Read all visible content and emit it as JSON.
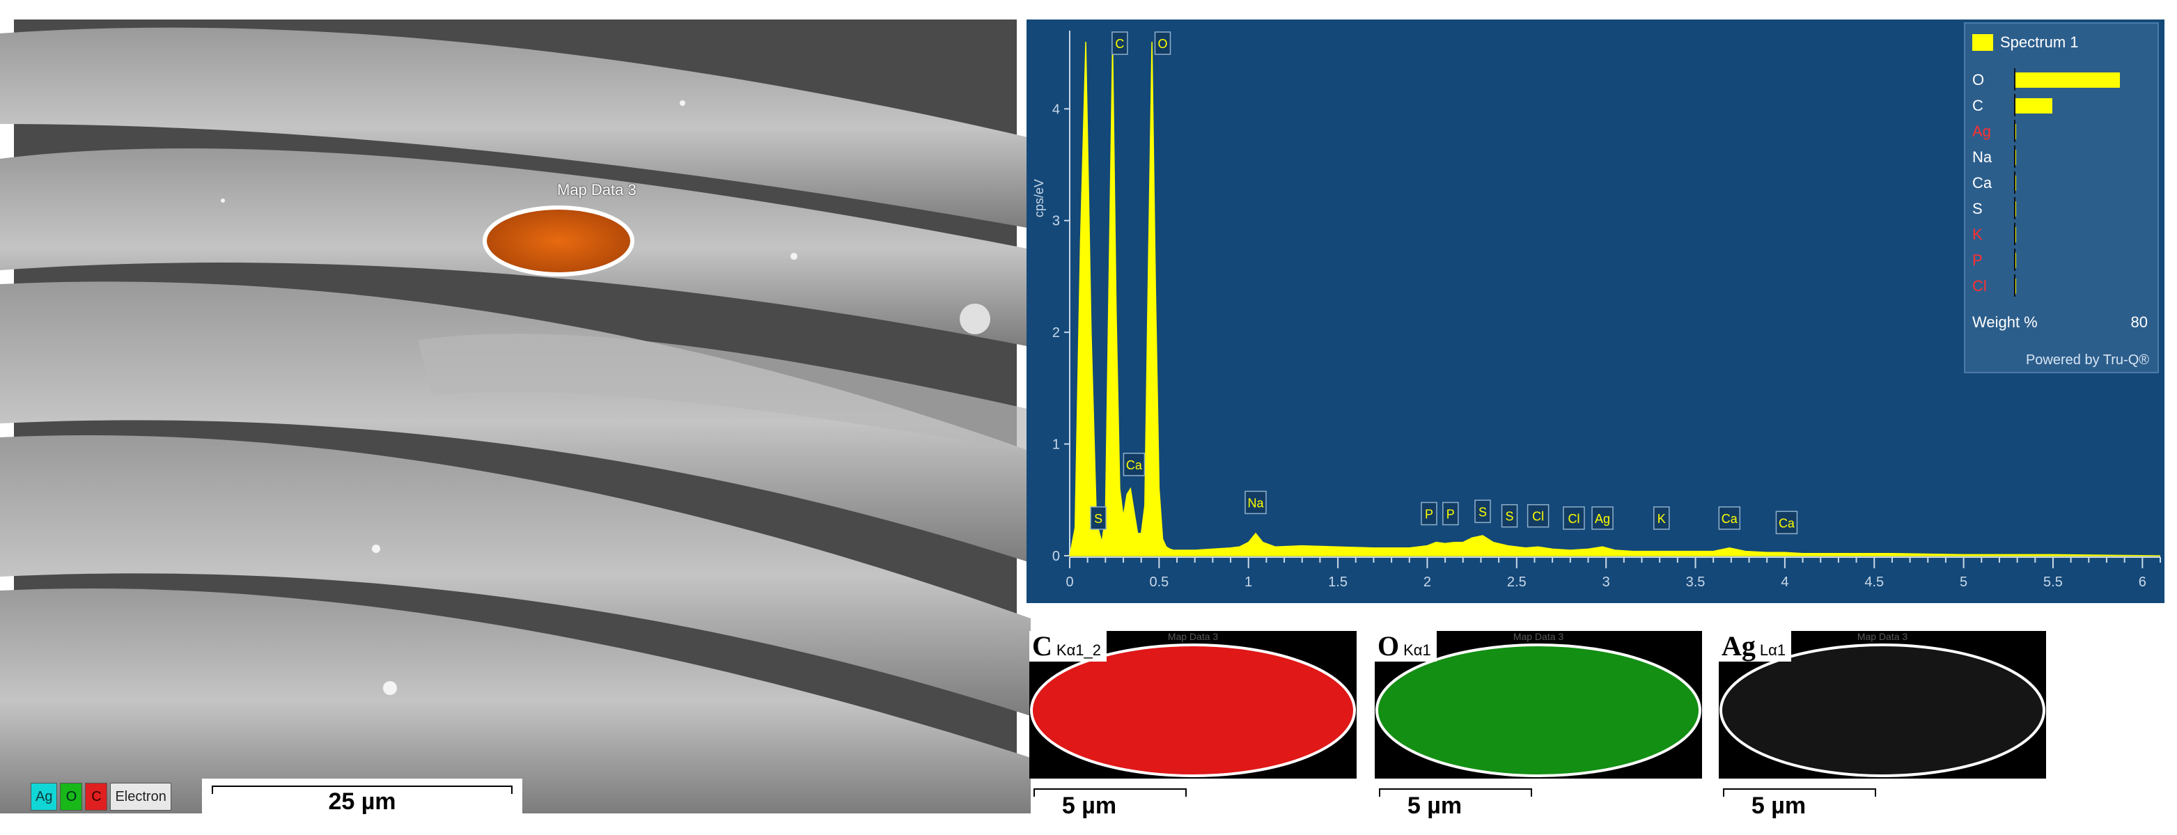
{
  "sem": {
    "roi_label": "Map Data 3",
    "legend": [
      "Ag",
      "O",
      "C",
      "Electron"
    ],
    "scale_bar": "25 µm"
  },
  "chart_data": {
    "type": "area",
    "title": "",
    "xlabel": "",
    "ylabel": "cps/eV",
    "xlim": [
      0,
      6.1
    ],
    "ylim": [
      0,
      4.7
    ],
    "x_ticks": [
      "0",
      "0.5",
      "1",
      "1.5",
      "2",
      "2.5",
      "3",
      "3.5",
      "4",
      "4.5",
      "5",
      "5.5",
      "6"
    ],
    "y_ticks": [
      "0",
      "1",
      "2",
      "3",
      "4"
    ],
    "grid": false,
    "series": [
      {
        "name": "Spectrum 1",
        "color": "#ffff00",
        "x": [
          0.0,
          0.03,
          0.06,
          0.09,
          0.12,
          0.15,
          0.18,
          0.2,
          0.22,
          0.24,
          0.26,
          0.28,
          0.3,
          0.32,
          0.34,
          0.36,
          0.38,
          0.4,
          0.42,
          0.44,
          0.46,
          0.48,
          0.5,
          0.52,
          0.54,
          0.56,
          0.58,
          0.6,
          0.65,
          0.7,
          0.8,
          0.9,
          0.95,
          1.0,
          1.04,
          1.08,
          1.15,
          1.3,
          1.5,
          1.7,
          1.9,
          2.0,
          2.05,
          2.1,
          2.15,
          2.2,
          2.25,
          2.31,
          2.37,
          2.45,
          2.55,
          2.62,
          2.7,
          2.8,
          2.9,
          2.98,
          3.05,
          3.15,
          3.3,
          3.45,
          3.6,
          3.69,
          3.78,
          3.9,
          4.0,
          4.1,
          4.3,
          4.6,
          5.0,
          5.5,
          6.1
        ],
        "y": [
          0.0,
          0.25,
          2.8,
          4.6,
          2.0,
          0.3,
          0.12,
          0.35,
          2.5,
          4.6,
          2.2,
          0.6,
          0.35,
          0.55,
          0.6,
          0.4,
          0.2,
          0.2,
          0.45,
          2.6,
          4.6,
          2.4,
          0.6,
          0.15,
          0.08,
          0.06,
          0.05,
          0.05,
          0.05,
          0.05,
          0.06,
          0.07,
          0.08,
          0.12,
          0.2,
          0.12,
          0.08,
          0.09,
          0.08,
          0.07,
          0.07,
          0.09,
          0.12,
          0.11,
          0.12,
          0.12,
          0.16,
          0.18,
          0.12,
          0.09,
          0.07,
          0.08,
          0.06,
          0.05,
          0.06,
          0.08,
          0.05,
          0.04,
          0.04,
          0.04,
          0.04,
          0.07,
          0.04,
          0.03,
          0.03,
          0.02,
          0.02,
          0.02,
          0.01,
          0.01,
          0.0
        ]
      }
    ],
    "peak_labels": [
      {
        "label": "C",
        "x": 0.28,
        "y": 4.8
      },
      {
        "label": "O",
        "x": 0.52,
        "y": 4.8
      },
      {
        "label": "Ca",
        "x": 0.36,
        "y": 0.68
      },
      {
        "label": "S",
        "x": 0.16,
        "y": 0.2
      },
      {
        "label": "Na",
        "x": 1.04,
        "y": 0.34
      },
      {
        "label": "P",
        "x": 2.01,
        "y": 0.24
      },
      {
        "label": "P",
        "x": 2.13,
        "y": 0.24
      },
      {
        "label": "S",
        "x": 2.31,
        "y": 0.26
      },
      {
        "label": "S",
        "x": 2.46,
        "y": 0.22
      },
      {
        "label": "Cl",
        "x": 2.62,
        "y": 0.22
      },
      {
        "label": "Cl",
        "x": 2.82,
        "y": 0.2
      },
      {
        "label": "Ag",
        "x": 2.98,
        "y": 0.2
      },
      {
        "label": "K",
        "x": 3.31,
        "y": 0.2
      },
      {
        "label": "Ca",
        "x": 3.69,
        "y": 0.2
      },
      {
        "label": "Ca",
        "x": 4.01,
        "y": 0.16
      }
    ],
    "legend_panel": {
      "title": "Spectrum 1",
      "xlabel": "Weight %",
      "max": 80,
      "elements": [
        {
          "name": "O",
          "value": 68,
          "color": "#ffffff"
        },
        {
          "name": "C",
          "value": 24,
          "color": "#ffffff"
        },
        {
          "name": "Ag",
          "value": 0.5,
          "color": "#ff3030"
        },
        {
          "name": "Na",
          "value": 0.5,
          "color": "#ffffff"
        },
        {
          "name": "Ca",
          "value": 0.4,
          "color": "#ffffff"
        },
        {
          "name": "S",
          "value": 0.3,
          "color": "#ffffff"
        },
        {
          "name": "K",
          "value": 0.2,
          "color": "#ff3030"
        },
        {
          "name": "P",
          "value": 0.2,
          "color": "#ff3030"
        },
        {
          "name": "Cl",
          "value": 0.2,
          "color": "#ff3030"
        }
      ],
      "footer": "Powered by Tru-Q®"
    }
  },
  "maps": [
    {
      "caption": "Map Data 3",
      "element": "C",
      "line": "Kα1_2",
      "color": "#e01818",
      "scale": "5 µm"
    },
    {
      "caption": "Map Data 3",
      "element": "O",
      "line": "Kα1",
      "color": "#138f13",
      "scale": "5 µm"
    },
    {
      "caption": "Map Data 3",
      "element": "Ag",
      "line": "Lα1",
      "color": "#151515",
      "scale": "5 µm"
    }
  ]
}
